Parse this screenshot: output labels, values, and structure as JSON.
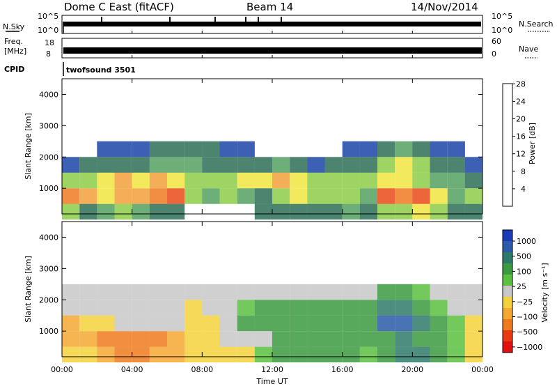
{
  "header": {
    "station": "Dome C East (fitACF)",
    "beam": "Beam 14",
    "date": "14/Nov/2014"
  },
  "strip_panels": {
    "nsky_label": "N.Sky",
    "nsky_ticks": [
      "10^5",
      "10^0"
    ],
    "nsearch_label": "N.Search",
    "nsearch_ticks": [
      "10^5",
      "10^0"
    ],
    "freq_label_1": "Freq.",
    "freq_label_2": "[MHz]",
    "freq_ticks": [
      "18",
      "8"
    ],
    "nave_label": "Nave",
    "nave_ticks": [
      "60",
      "0"
    ],
    "cpid_label": "CPID",
    "cpid_value": "twofsound 3501"
  },
  "axes": {
    "ylabel": "Slant Range [km]",
    "xlabel": "Time UT",
    "yticks": [
      "1000",
      "2000",
      "3000",
      "4000"
    ],
    "xticks": [
      "00:00",
      "04:00",
      "08:00",
      "12:00",
      "16:00",
      "20:00",
      "00:00"
    ]
  },
  "power_colorbar": {
    "label": "Power [dB]",
    "ticks": [
      "4",
      "8",
      "12",
      "16",
      "20",
      "24",
      "28"
    ],
    "colors": [
      "#1f2bff",
      "#1b44a8",
      "#2e6f56",
      "#55a060",
      "#8ccc48",
      "#f0e640",
      "#f2a03a",
      "#ee7a22",
      "#ea4a18",
      "#e81a10"
    ]
  },
  "velocity_colorbar": {
    "label": "Velocity [m s⁻¹]",
    "ticks": [
      "1000",
      "500",
      "100",
      "25",
      "−25",
      "−100",
      "−500",
      "−1000"
    ],
    "colors": [
      "#1a3ab8",
      "#2a5aa8",
      "#2e7a6a",
      "#3c9a40",
      "#5cc040",
      "#c8c8c8",
      "#f5d23c",
      "#f5a832",
      "#f07a1e",
      "#ea3a12",
      "#e01010"
    ]
  },
  "chart_data": [
    {
      "type": "heatmap",
      "title": "Power [dB]",
      "xlabel": "Time UT",
      "ylabel": "Slant Range [km]",
      "xlim": [
        0,
        24
      ],
      "ylim": [
        180,
        4500
      ],
      "x": [
        0.5,
        1.5,
        2.5,
        3.5,
        4.5,
        5.5,
        6.5,
        7.5,
        8.5,
        9.5,
        10.5,
        11.5,
        12.5,
        13.5,
        14.5,
        15.5,
        16.5,
        17.5,
        18.5,
        19.5,
        20.5,
        21.5,
        22.5,
        23.5
      ],
      "y": [
        250,
        750,
        1250,
        1750,
        2250
      ],
      "z": [
        [
          12,
          8,
          10,
          12,
          10,
          8,
          8,
          0,
          0,
          0,
          0,
          6,
          6,
          6,
          8,
          8,
          10,
          6,
          12,
          14,
          16,
          14,
          8,
          8
        ],
        [
          22,
          20,
          16,
          18,
          20,
          22,
          24,
          12,
          10,
          12,
          10,
          8,
          12,
          16,
          14,
          12,
          12,
          10,
          24,
          22,
          24,
          16,
          10,
          12
        ],
        [
          12,
          14,
          16,
          18,
          16,
          18,
          16,
          14,
          12,
          14,
          16,
          16,
          18,
          16,
          12,
          14,
          12,
          14,
          16,
          16,
          14,
          10,
          10,
          8
        ],
        [
          4,
          6,
          8,
          8,
          6,
          10,
          10,
          10,
          8,
          8,
          6,
          8,
          10,
          6,
          4,
          6,
          8,
          8,
          14,
          16,
          12,
          8,
          6,
          4
        ],
        [
          0,
          0,
          4,
          4,
          4,
          6,
          6,
          6,
          6,
          4,
          4,
          0,
          0,
          0,
          0,
          0,
          4,
          4,
          8,
          10,
          6,
          4,
          4,
          0
        ]
      ]
    },
    {
      "type": "heatmap",
      "title": "Velocity [m s⁻¹]",
      "xlabel": "Time UT",
      "ylabel": "Slant Range [km]",
      "xlim": [
        0,
        24
      ],
      "ylim": [
        180,
        4500
      ],
      "x": [
        0.5,
        1.5,
        2.5,
        3.5,
        4.5,
        5.5,
        6.5,
        7.5,
        8.5,
        9.5,
        10.5,
        11.5,
        12.5,
        13.5,
        14.5,
        15.5,
        16.5,
        17.5,
        18.5,
        19.5,
        20.5,
        21.5,
        22.5,
        23.5
      ],
      "y": [
        250,
        750,
        1250,
        1750,
        2250
      ],
      "z": [
        [
          -100,
          -100,
          -200,
          -300,
          -300,
          -200,
          -150,
          -100,
          -50,
          -30,
          -30,
          50,
          100,
          100,
          150,
          150,
          100,
          50,
          100,
          300,
          300,
          200,
          50,
          -100
        ],
        [
          -200,
          -200,
          -300,
          -300,
          -300,
          -300,
          -200,
          -100,
          -50,
          -20,
          -10,
          20,
          100,
          150,
          200,
          200,
          150,
          100,
          200,
          300,
          200,
          150,
          50,
          -100
        ],
        [
          -150,
          -100,
          -50,
          -20,
          -20,
          -10,
          -10,
          -100,
          -50,
          20,
          100,
          150,
          200,
          150,
          100,
          150,
          150,
          200,
          500,
          600,
          300,
          100,
          50,
          -50
        ],
        [
          0,
          0,
          -20,
          0,
          0,
          0,
          -20,
          -50,
          -20,
          0,
          50,
          100,
          200,
          150,
          100,
          100,
          150,
          200,
          300,
          300,
          200,
          50,
          0,
          0
        ],
        [
          0,
          0,
          0,
          0,
          0,
          0,
          0,
          0,
          -20,
          0,
          0,
          0,
          0,
          0,
          0,
          0,
          0,
          0,
          100,
          100,
          50,
          0,
          0,
          0
        ]
      ]
    }
  ]
}
